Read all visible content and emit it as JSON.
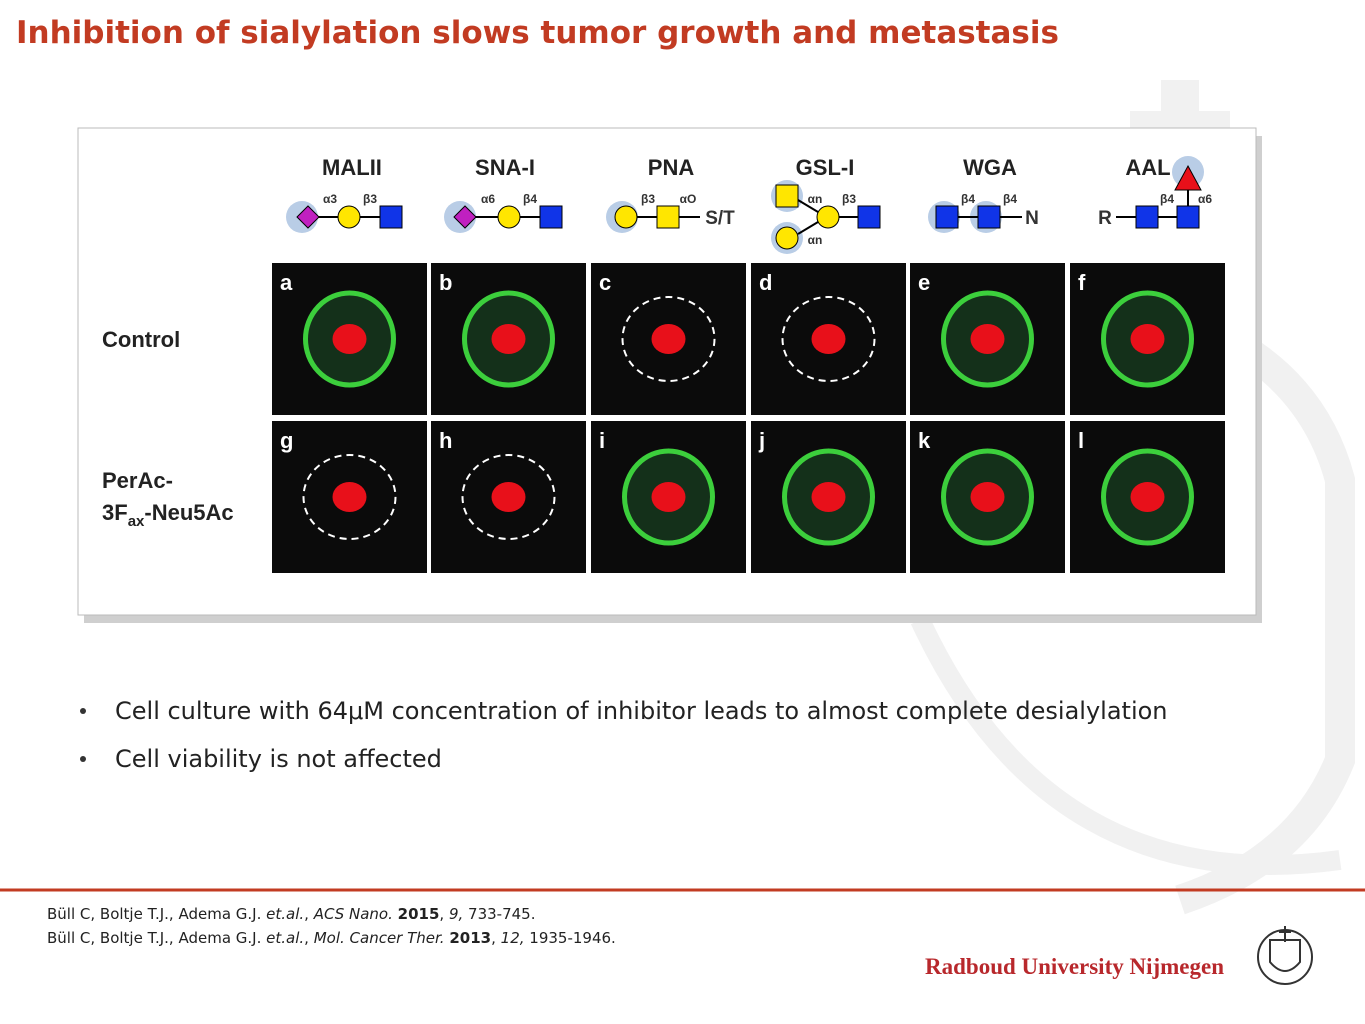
{
  "header": {
    "title": "Inhibition of sialylation slows tumor growth and metastasis"
  },
  "figure": {
    "lectins": [
      "MALII",
      "SNA-I",
      "PNA",
      "GSL-I",
      "WGA",
      "AAL"
    ],
    "glycans": [
      {
        "labels": [
          "α3",
          "β3"
        ]
      },
      {
        "labels": [
          "α6",
          "β4"
        ]
      },
      {
        "labels": [
          "β3",
          "αO",
          "S/T"
        ]
      },
      {
        "labels": [
          "αn",
          "αn",
          "β3"
        ]
      },
      {
        "labels": [
          "β4",
          "β4",
          "N"
        ]
      },
      {
        "labels": [
          "R",
          "β4",
          "α6"
        ]
      }
    ],
    "rows": {
      "control": "Control",
      "treated": {
        "line1": "PerAc-",
        "line2": "3F",
        "sub": "ax",
        "line2_end": "-Neu5Ac"
      }
    },
    "panels": [
      "a",
      "b",
      "c",
      "d",
      "e",
      "f",
      "g",
      "h",
      "i",
      "j",
      "k",
      "l"
    ]
  },
  "bullets": [
    "Cell culture with 64μM concentration of inhibitor leads to almost complete desialylation",
    "Cell viability is not affected"
  ],
  "references": [
    [
      {
        "t": "Büll C, Boltje T.J., Adema G.J. ",
        "s": "normal"
      },
      {
        "t": "et.al.",
        "s": "italic"
      },
      {
        "t": ", ",
        "s": "normal"
      },
      {
        "t": "ACS Nano.",
        "s": "italic"
      },
      {
        "t": " ",
        "s": "normal"
      },
      {
        "t": "2015",
        "s": "bold"
      },
      {
        "t": ", ",
        "s": "normal"
      },
      {
        "t": "9,",
        "s": "italic"
      },
      {
        "t": " 733-745.",
        "s": "normal"
      }
    ],
    [
      {
        "t": "Büll C, Boltje T.J., Adema G.J. ",
        "s": "normal"
      },
      {
        "t": "et.al.",
        "s": "italic"
      },
      {
        "t": ", ",
        "s": "normal"
      },
      {
        "t": "Mol. Cancer Ther.",
        "s": "italic"
      },
      {
        "t": " ",
        "s": "normal"
      },
      {
        "t": "2013",
        "s": "bold"
      },
      {
        "t": ", ",
        "s": "normal"
      },
      {
        "t": "12,",
        "s": "italic"
      },
      {
        "t": " 1935-1946.",
        "s": "normal"
      }
    ]
  ],
  "footer": {
    "logo": "Radboud University Nijmegen"
  }
}
